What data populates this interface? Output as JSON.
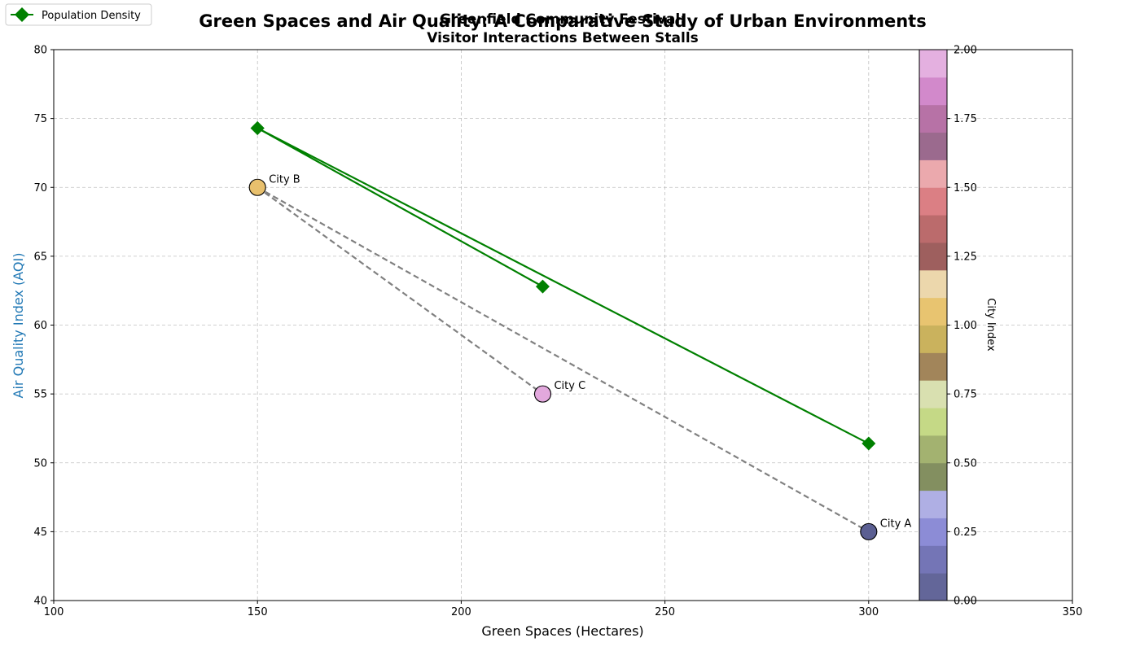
{
  "chart_data": {
    "type": "scatter",
    "title": "Green Spaces and Air Quality: A Comparative Study of Urban Environments",
    "overlay_title_line1": "Greenfield Community Festival:",
    "overlay_title_line2": "Visitor Interactions Between Stalls",
    "xlabel": "Green Spaces (Hectares)",
    "ylabel": "Air Quality Index (AQI)",
    "xlim": [
      100,
      350
    ],
    "ylim": [
      40,
      80
    ],
    "x_ticks": [
      "100",
      "150",
      "200",
      "250",
      "300",
      "350"
    ],
    "y_ticks": [
      "40",
      "45",
      "50",
      "55",
      "60",
      "65",
      "70",
      "75",
      "80"
    ],
    "grid": true,
    "legend_position": "top-left",
    "points": [
      {
        "label": "City A",
        "x": 300,
        "y": 45,
        "color_index": 0.0,
        "color": "#5b5f92"
      },
      {
        "label": "City B",
        "x": 150,
        "y": 70,
        "color_index": 1.0,
        "color": "#e8c06d"
      },
      {
        "label": "City C",
        "x": 220,
        "y": 55,
        "color_index": 2.0,
        "color": "#e2a8dd"
      }
    ],
    "connections": [
      {
        "from": "City B",
        "to": "City C"
      },
      {
        "from": "City B",
        "to": "City A"
      }
    ],
    "connection_color": "#808080",
    "series": [
      {
        "name": "Population Density",
        "color": "#008000",
        "marker": "diamond",
        "points": [
          {
            "x": 300,
            "y": 51.4
          },
          {
            "x": 150,
            "y": 74.3
          },
          {
            "x": 220,
            "y": 62.8
          },
          {
            "x": 150,
            "y": 74.3
          }
        ]
      }
    ],
    "colorbar": {
      "label": "City Index",
      "range": [
        0,
        2
      ],
      "ticks": [
        "0.00",
        "0.25",
        "0.50",
        "0.75",
        "1.00",
        "1.25",
        "1.50",
        "1.75",
        "2.00"
      ],
      "colors": [
        "#636699",
        "#7475b6",
        "#8c8cd6",
        "#afafe4",
        "#838f60",
        "#a3b270",
        "#c5d986",
        "#d9e0b0",
        "#a2855a",
        "#cab25d",
        "#e8c470",
        "#ecd7ac",
        "#9e5f5e",
        "#bb6b6c",
        "#db7f84",
        "#eba9ad",
        "#9b6a8e",
        "#b772a6",
        "#d289cb",
        "#e4b0e0"
      ]
    }
  }
}
